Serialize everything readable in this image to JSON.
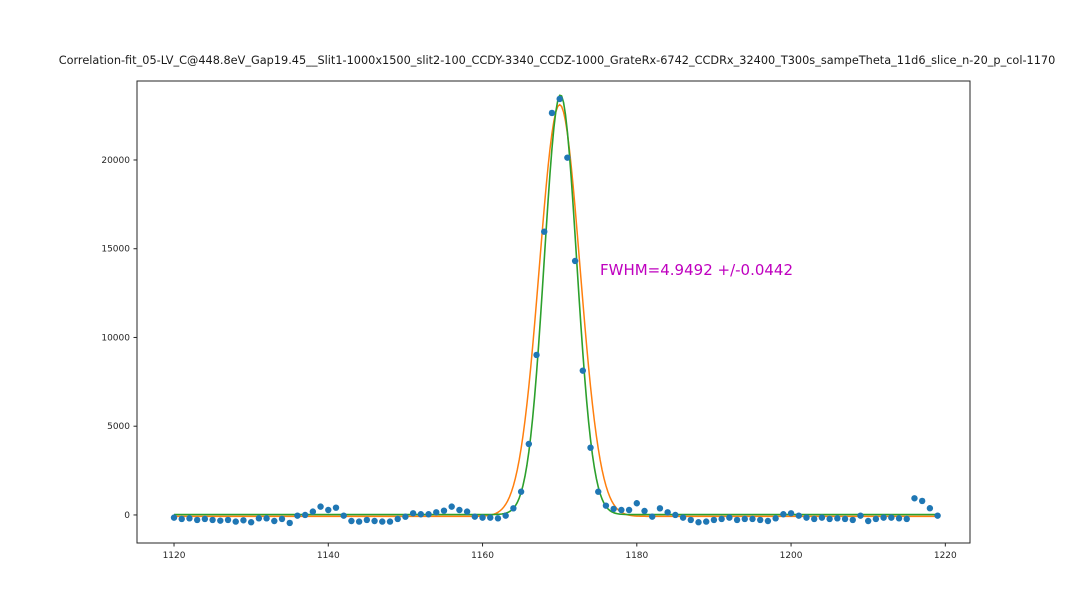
{
  "title": "Correlation-fit_05-LV_C@448.8eV_Gap19.45__Slit1-1000x1500_slit2-100_CCDY-3340_CCDZ-1000_GrateRx-6742_CCDRx_32400_T300s_sampeTheta_11d6_slice_n-20_p_col-1170",
  "annotation": {
    "text": "FWHM=4.9492 +/-0.0442",
    "color": "#bf00bf"
  },
  "colors": {
    "scatter": "#1f77b4",
    "fit": "#2ca02c",
    "fit_secondary": "#ff7f0e",
    "axis": "#262626"
  },
  "chart_data": {
    "type": "scatter",
    "title": "Correlation-fit_05-LV_C@448.8eV_Gap19.45__Slit1-1000x1500_slit2-100_CCDY-3340_CCDZ-1000_GrateRx-6742_CCDRx_32400_T300s_sampeTheta_11d6_slice_n-20_p_col-1170",
    "xlabel": "",
    "ylabel": "",
    "grid": false,
    "legend": "none",
    "xlim": [
      1115.2,
      1223.2
    ],
    "ylim": [
      -1580,
      24450
    ],
    "xticks": [
      1120,
      1140,
      1160,
      1180,
      1200,
      1220
    ],
    "yticks": [
      0,
      5000,
      10000,
      15000,
      20000
    ],
    "x": [
      1120,
      1121,
      1122,
      1123,
      1124,
      1125,
      1126,
      1127,
      1128,
      1129,
      1130,
      1131,
      1132,
      1133,
      1134,
      1135,
      1136,
      1137,
      1138,
      1139,
      1140,
      1141,
      1142,
      1143,
      1144,
      1145,
      1146,
      1147,
      1148,
      1149,
      1150,
      1151,
      1152,
      1153,
      1154,
      1155,
      1156,
      1157,
      1158,
      1159,
      1160,
      1161,
      1162,
      1163,
      1164,
      1165,
      1166,
      1167,
      1168,
      1169,
      1170,
      1171,
      1172,
      1173,
      1174,
      1175,
      1176,
      1177,
      1178,
      1179,
      1180,
      1181,
      1182,
      1183,
      1184,
      1185,
      1186,
      1187,
      1188,
      1189,
      1190,
      1191,
      1192,
      1193,
      1194,
      1195,
      1196,
      1197,
      1198,
      1199,
      1200,
      1201,
      1202,
      1203,
      1204,
      1205,
      1206,
      1207,
      1208,
      1209,
      1210,
      1211,
      1212,
      1213,
      1214,
      1215,
      1216,
      1217,
      1218,
      1219
    ],
    "y": [
      -150,
      -225,
      -190,
      -280,
      -225,
      -280,
      -320,
      -280,
      -375,
      -300,
      -410,
      -190,
      -190,
      -340,
      -225,
      -450,
      -40,
      0,
      190,
      470,
      280,
      410,
      -40,
      -340,
      -375,
      -280,
      -340,
      -375,
      -375,
      -225,
      -100,
      95,
      40,
      40,
      150,
      240,
      470,
      280,
      190,
      -95,
      -150,
      -150,
      -190,
      -40,
      375,
      1310,
      4000,
      9015,
      15960,
      22650,
      23440,
      20130,
      14310,
      8130,
      3790,
      1310,
      525,
      340,
      280,
      280,
      660,
      225,
      -95,
      375,
      150,
      0,
      -150,
      -280,
      -410,
      -375,
      -280,
      -225,
      -150,
      -280,
      -225,
      -225,
      -280,
      -340,
      -190,
      40,
      95,
      -40,
      -150,
      -225,
      -150,
      -225,
      -190,
      -225,
      -280,
      -40,
      -340,
      -225,
      -150,
      -150,
      -190,
      -225,
      940,
      790,
      380,
      -40
    ],
    "fit": {
      "type": "gaussian",
      "center": 1170.1,
      "fwhm": 4.9492,
      "fwhm_error": 0.0442,
      "amplitude": 23650,
      "baseline": 20
    },
    "fit_secondary": {
      "type": "gaussian",
      "center": 1170.0,
      "fwhm": 6.2,
      "amplitude": 23200,
      "baseline": -80
    }
  }
}
